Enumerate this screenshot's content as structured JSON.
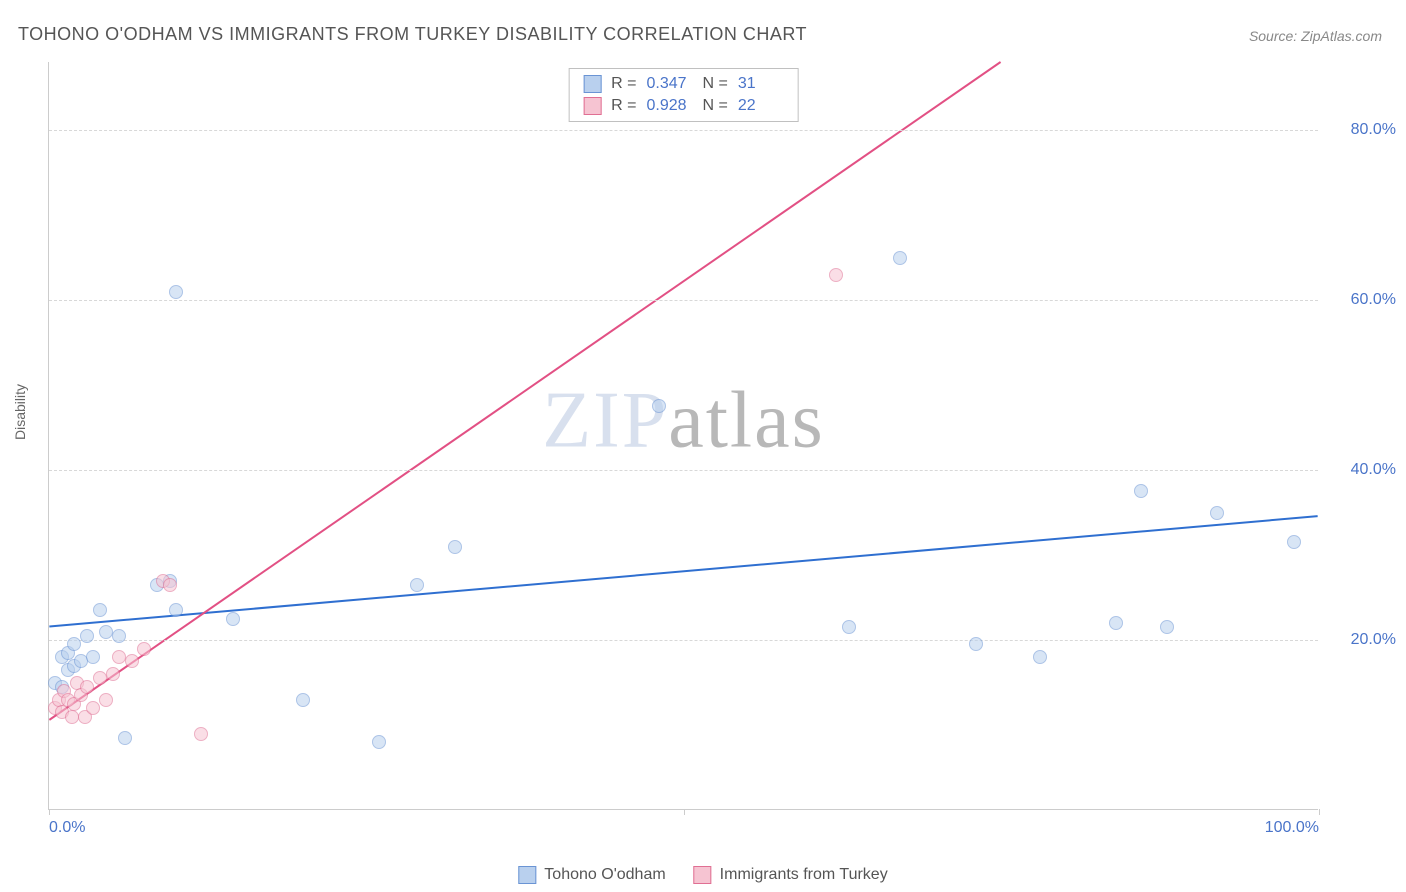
{
  "title": "TOHONO O'ODHAM VS IMMIGRANTS FROM TURKEY DISABILITY CORRELATION CHART",
  "source_label": "Source: ",
  "source_value": "ZipAtlas.com",
  "y_axis_label": "Disability",
  "watermark_a": "ZIP",
  "watermark_b": "atlas",
  "chart": {
    "type": "scatter",
    "xlim": [
      0,
      100
    ],
    "ylim": [
      0,
      88
    ],
    "x_ticks": [
      0,
      50,
      100
    ],
    "x_tick_labels": [
      "0.0%",
      "",
      "100.0%"
    ],
    "y_ticks": [
      20,
      40,
      60,
      80
    ],
    "y_tick_labels": [
      "20.0%",
      "40.0%",
      "60.0%",
      "80.0%"
    ],
    "grid_color": "#d8d8d8",
    "axis_color": "#cccccc",
    "background_color": "#ffffff",
    "tick_label_color": "#4a74c9",
    "marker_radius": 7,
    "marker_opacity": 0.55,
    "series": [
      {
        "key": "tohono",
        "label": "Tohono O'odham",
        "fill": "#b9d0ee",
        "stroke": "#6a94d4",
        "line_color": "#2f6fd0",
        "R": "0.347",
        "N": "31",
        "trend": {
          "x1": 0,
          "y1": 21.5,
          "x2": 100,
          "y2": 34.5
        },
        "points": [
          [
            0.5,
            15
          ],
          [
            1,
            14.5
          ],
          [
            1,
            18
          ],
          [
            1.5,
            16.5
          ],
          [
            1.5,
            18.5
          ],
          [
            2,
            17
          ],
          [
            2,
            19.5
          ],
          [
            2.5,
            17.5
          ],
          [
            3,
            20.5
          ],
          [
            3.5,
            18
          ],
          [
            4,
            23.5
          ],
          [
            4.5,
            21
          ],
          [
            5.5,
            20.5
          ],
          [
            6,
            8.5
          ],
          [
            8.5,
            26.5
          ],
          [
            9.5,
            27
          ],
          [
            10,
            23.5
          ],
          [
            10,
            61
          ],
          [
            14.5,
            22.5
          ],
          [
            20,
            13
          ],
          [
            26,
            8
          ],
          [
            29,
            26.5
          ],
          [
            32,
            31
          ],
          [
            48,
            47.5
          ],
          [
            67,
            65
          ],
          [
            63,
            21.5
          ],
          [
            73,
            19.5
          ],
          [
            78,
            18
          ],
          [
            84,
            22
          ],
          [
            86,
            37.5
          ],
          [
            88,
            21.5
          ],
          [
            92,
            35
          ],
          [
            98,
            31.5
          ]
        ]
      },
      {
        "key": "turkey",
        "label": "Immigrants from Turkey",
        "fill": "#f6c4d2",
        "stroke": "#e06f93",
        "line_color": "#e25084",
        "R": "0.928",
        "N": "22",
        "trend": {
          "x1": 0,
          "y1": 10.5,
          "x2": 75,
          "y2": 88
        },
        "points": [
          [
            0.5,
            12
          ],
          [
            0.8,
            13
          ],
          [
            1,
            11.5
          ],
          [
            1.2,
            14
          ],
          [
            1.5,
            13
          ],
          [
            1.8,
            11
          ],
          [
            2,
            12.5
          ],
          [
            2.2,
            15
          ],
          [
            2.5,
            13.5
          ],
          [
            2.8,
            11
          ],
          [
            3,
            14.5
          ],
          [
            3.5,
            12
          ],
          [
            4,
            15.5
          ],
          [
            4.5,
            13
          ],
          [
            5,
            16
          ],
          [
            5.5,
            18
          ],
          [
            6.5,
            17.5
          ],
          [
            7.5,
            19
          ],
          [
            9,
            27
          ],
          [
            9.5,
            26.5
          ],
          [
            12,
            9
          ],
          [
            62,
            63
          ]
        ]
      }
    ]
  },
  "stats_labels": {
    "R": "R =",
    "N": "N ="
  },
  "legend_bottom": [
    {
      "key": "tohono",
      "label": "Tohono O'odham"
    },
    {
      "key": "turkey",
      "label": "Immigrants from Turkey"
    }
  ]
}
